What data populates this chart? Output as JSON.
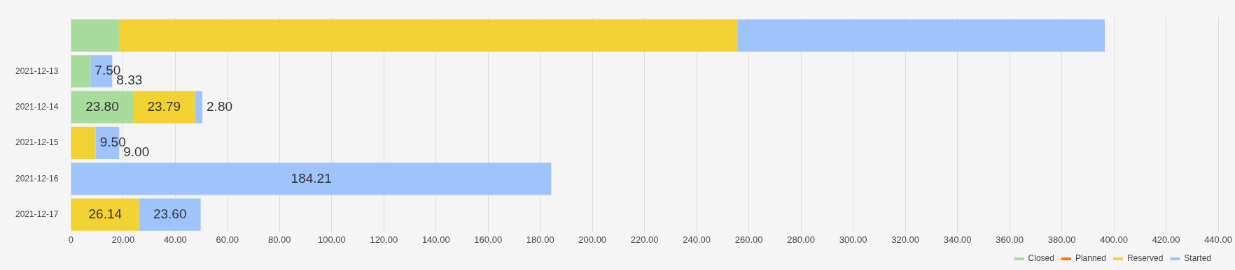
{
  "chart_data": {
    "type": "bar",
    "orientation": "horizontal",
    "stacked": true,
    "categories": [
      null,
      "2021-12-13",
      "2021-12-14",
      "2021-12-15",
      "2021-12-16",
      "2021-12-17"
    ],
    "series": [
      {
        "name": "Closed",
        "color": "#a8dc9c",
        "values": [
          18.4,
          7.5,
          23.8,
          null,
          null,
          null
        ],
        "value_labels": [
          null,
          "7.50",
          "23.80",
          null,
          null,
          null
        ]
      },
      {
        "name": "Planned",
        "color": "#ff780a",
        "values": [
          null,
          null,
          null,
          null,
          null,
          null
        ]
      },
      {
        "name": "Reserved",
        "color": "#f2d233",
        "values": [
          237.4,
          null,
          23.79,
          9.5,
          null,
          26.14
        ],
        "value_labels": [
          null,
          null,
          "23.79",
          "9.50",
          null,
          "26.14"
        ]
      },
      {
        "name": "Started",
        "color": "#9fc3fb",
        "values": [
          140.7,
          8.33,
          2.8,
          9.0,
          184.21,
          23.6
        ],
        "value_labels": [
          null,
          "8.33",
          "2.80",
          "9.00",
          "184.21",
          "23.60"
        ]
      }
    ],
    "xlim": [
      0,
      440
    ],
    "xticks": [
      0,
      {
        "value": 20,
        "label": "20.00"
      },
      {
        "value": 40,
        "label": "40.00"
      },
      {
        "value": 60,
        "label": "60.00"
      },
      {
        "value": 80,
        "label": "80.00"
      },
      {
        "value": 100,
        "label": "100.00"
      },
      {
        "value": 120,
        "label": "120.00"
      },
      {
        "value": 140,
        "label": "140.00"
      },
      {
        "value": 160,
        "label": "160.00"
      },
      {
        "value": 180,
        "label": "180.00"
      },
      {
        "value": 200,
        "label": "200.00"
      },
      {
        "value": 220,
        "label": "220.00"
      },
      {
        "value": 240,
        "label": "240.00"
      },
      {
        "value": 260,
        "label": "260.00"
      },
      {
        "value": 280,
        "label": "280.00"
      },
      {
        "value": 300,
        "label": "300.00"
      },
      {
        "value": 320,
        "label": "320.00"
      },
      {
        "value": 340,
        "label": "340.00"
      },
      {
        "value": 360,
        "label": "360.00"
      },
      {
        "value": 380,
        "label": "380.00"
      },
      {
        "value": 400,
        "label": "400.00"
      },
      {
        "value": 420,
        "label": "420.00"
      },
      {
        "value": 440,
        "label": "440.00"
      }
    ],
    "grid": "x",
    "legend": "bottom right"
  }
}
